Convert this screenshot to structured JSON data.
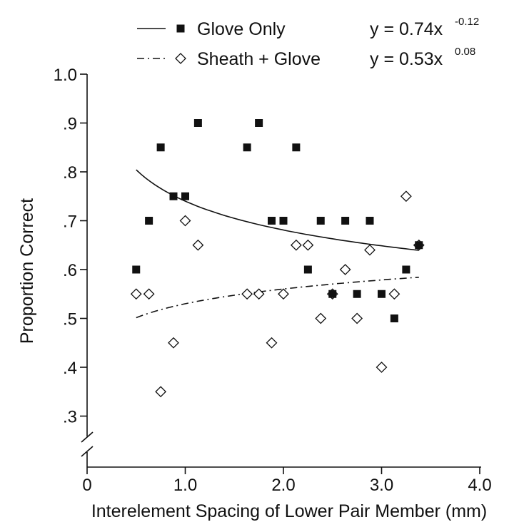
{
  "chart_data": {
    "type": "scatter",
    "title": "",
    "xlabel": "Interelement Spacing of Lower Pair Member (mm)",
    "ylabel": "Proportion Correct",
    "xlim": [
      0,
      4.0
    ],
    "ylim": [
      0.25,
      1.0
    ],
    "y_axis_break": true,
    "x_ticks": [
      0,
      1.0,
      2.0,
      3.0,
      4.0
    ],
    "x_tick_labels": [
      "0",
      "1.0",
      "2.0",
      "3.0",
      "4.0"
    ],
    "y_ticks": [
      0.3,
      0.4,
      0.5,
      0.6,
      0.7,
      0.8,
      0.9,
      1.0
    ],
    "y_tick_labels": [
      ".3",
      ".4",
      ".5",
      ".6",
      ".7",
      ".8",
      ".9",
      "1.0"
    ],
    "grid": false,
    "legend_position": "top",
    "series": [
      {
        "name": "Glove Only",
        "marker": "filled-square",
        "line_style": "solid",
        "fit": {
          "a": 0.74,
          "b": -0.12
        },
        "equation_base": "y = 0.74x",
        "equation_exponent": "-0.12",
        "points": [
          [
            0.5,
            0.6
          ],
          [
            0.63,
            0.7
          ],
          [
            0.75,
            0.85
          ],
          [
            0.88,
            0.75
          ],
          [
            1.0,
            0.75
          ],
          [
            1.13,
            0.9
          ],
          [
            1.63,
            0.85
          ],
          [
            1.75,
            0.9
          ],
          [
            1.88,
            0.7
          ],
          [
            2.0,
            0.7
          ],
          [
            2.13,
            0.85
          ],
          [
            2.25,
            0.6
          ],
          [
            2.38,
            0.7
          ],
          [
            2.5,
            0.55
          ],
          [
            2.63,
            0.7
          ],
          [
            2.75,
            0.55
          ],
          [
            2.88,
            0.7
          ],
          [
            3.0,
            0.55
          ],
          [
            3.13,
            0.5
          ],
          [
            3.25,
            0.6
          ],
          [
            3.38,
            0.65
          ]
        ]
      },
      {
        "name": "Sheath + Glove",
        "marker": "open-diamond",
        "line_style": "dash-dot",
        "fit": {
          "a": 0.53,
          "b": 0.08
        },
        "equation_base": "y = 0.53x",
        "equation_exponent": "0.08",
        "points": [
          [
            0.5,
            0.55
          ],
          [
            0.63,
            0.55
          ],
          [
            0.75,
            0.35
          ],
          [
            0.88,
            0.45
          ],
          [
            1.0,
            0.7
          ],
          [
            1.13,
            0.65
          ],
          [
            1.63,
            0.55
          ],
          [
            1.75,
            0.55
          ],
          [
            1.88,
            0.45
          ],
          [
            2.0,
            0.55
          ],
          [
            2.13,
            0.65
          ],
          [
            2.25,
            0.65
          ],
          [
            2.38,
            0.5
          ],
          [
            2.5,
            0.55
          ],
          [
            2.63,
            0.6
          ],
          [
            2.75,
            0.5
          ],
          [
            2.88,
            0.64
          ],
          [
            3.0,
            0.4
          ],
          [
            3.13,
            0.55
          ],
          [
            3.25,
            0.75
          ],
          [
            3.38,
            0.65
          ]
        ]
      }
    ]
  }
}
